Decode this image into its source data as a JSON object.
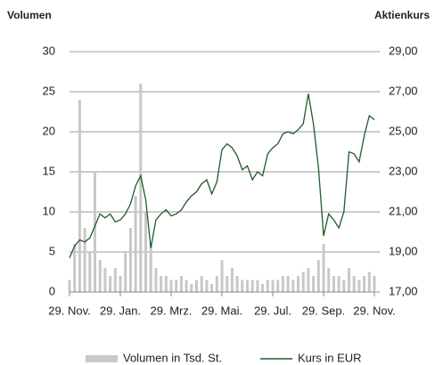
{
  "chart_data": {
    "type": "bar-line",
    "y_label": "Volumen",
    "y2_label": "Aktienkurs",
    "categories": [
      "29. Nov.",
      null,
      null,
      null,
      null,
      null,
      null,
      null,
      null,
      null,
      "29. Jan.",
      null,
      null,
      null,
      null,
      null,
      null,
      null,
      null,
      null,
      "29. Mrz.",
      null,
      null,
      null,
      null,
      null,
      null,
      null,
      null,
      null,
      "29. Mai.",
      null,
      null,
      null,
      null,
      null,
      null,
      null,
      null,
      null,
      "29. Jul.",
      null,
      null,
      null,
      null,
      null,
      null,
      null,
      null,
      null,
      "29. Sep.",
      null,
      null,
      null,
      null,
      null,
      null,
      null,
      null,
      null,
      "29. Nov."
    ],
    "series": [
      {
        "name": "Volumen in Tsd. St.",
        "type": "bar",
        "axis": "y",
        "color": "#c8c8c8",
        "values": [
          1.5,
          6,
          24,
          8,
          5,
          15,
          4,
          3,
          2,
          3,
          2,
          5,
          8,
          12,
          26,
          10,
          6,
          3,
          2,
          2,
          1.5,
          1.5,
          2,
          1.5,
          1,
          1.5,
          2,
          1.5,
          1,
          2,
          4,
          2,
          3,
          2,
          1.5,
          1.5,
          1.5,
          1.5,
          1,
          1.5,
          1.5,
          1.5,
          2,
          2,
          1.5,
          2,
          2.5,
          3,
          2,
          4,
          6,
          3,
          2,
          2,
          1.5,
          3,
          2,
          1.5,
          2,
          2.5,
          2
        ]
      },
      {
        "name": "Kurs in EUR",
        "type": "line",
        "axis": "y2",
        "color": "#1f5b2a",
        "values": [
          18.7,
          19.3,
          19.6,
          19.5,
          19.7,
          20.3,
          20.9,
          20.7,
          20.9,
          20.5,
          20.6,
          20.9,
          21.4,
          22.3,
          22.8,
          21.6,
          19.2,
          20.6,
          20.9,
          21.1,
          20.8,
          20.9,
          21.1,
          21.5,
          21.8,
          22.0,
          22.4,
          22.6,
          21.9,
          22.5,
          24.1,
          24.4,
          24.2,
          23.8,
          23.1,
          23.3,
          22.6,
          23.0,
          22.8,
          23.9,
          24.2,
          24.4,
          24.9,
          25.0,
          24.9,
          25.1,
          25.4,
          26.9,
          25.4,
          23.2,
          19.8,
          20.9,
          20.6,
          20.2,
          21.0,
          24.0,
          23.9,
          23.5,
          24.8,
          25.8,
          25.6
        ]
      }
    ],
    "ylim": [
      0,
      30
    ],
    "yticks": [
      0,
      5,
      10,
      15,
      20,
      25,
      30
    ],
    "y2lim": [
      17,
      29
    ],
    "y2ticks": [
      {
        "value": 17,
        "label": "17,00"
      },
      {
        "value": 19,
        "label": "19,00"
      },
      {
        "value": 21,
        "label": "21,00"
      },
      {
        "value": 23,
        "label": "23,00"
      },
      {
        "value": 25,
        "label": "25,00"
      },
      {
        "value": 27,
        "label": "27,00"
      },
      {
        "value": 29,
        "label": "29,00"
      }
    ],
    "grid": true,
    "legend": "bottom"
  }
}
